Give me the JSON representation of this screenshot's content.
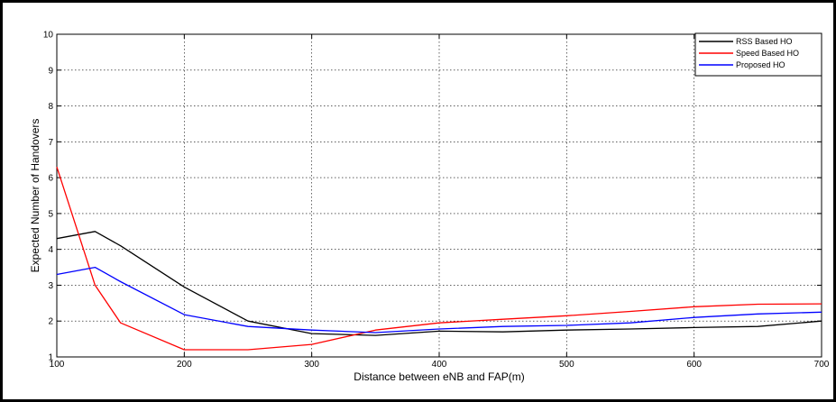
{
  "chart_data": {
    "type": "line",
    "xlabel": "Distance between eNB and FAP(m)",
    "ylabel": "Expected Number of Handovers",
    "xlim": [
      100,
      700
    ],
    "ylim": [
      1,
      10
    ],
    "xticks": [
      "100",
      "200",
      "300",
      "400",
      "500",
      "600",
      "700"
    ],
    "yticks": [
      "1",
      "2",
      "3",
      "4",
      "5",
      "6",
      "7",
      "8",
      "9",
      "10"
    ],
    "grid": true,
    "legend_position": "top-right",
    "series": [
      {
        "name": "RSS Based HO",
        "color": "#000000",
        "x": [
          100,
          130,
          150,
          200,
          250,
          300,
          350,
          400,
          450,
          500,
          550,
          600,
          650,
          700
        ],
        "y": [
          4.3,
          4.5,
          4.1,
          2.95,
          2.0,
          1.65,
          1.6,
          1.72,
          1.7,
          1.75,
          1.78,
          1.82,
          1.85,
          2.0
        ]
      },
      {
        "name": "Speed Based HO",
        "color": "#ff0000",
        "x": [
          100,
          130,
          150,
          200,
          250,
          300,
          350,
          400,
          450,
          500,
          550,
          600,
          650,
          700
        ],
        "y": [
          6.3,
          3.0,
          1.95,
          1.2,
          1.2,
          1.35,
          1.75,
          1.95,
          2.05,
          2.15,
          2.27,
          2.4,
          2.47,
          2.48
        ]
      },
      {
        "name": "Proposed HO",
        "color": "#0000ff",
        "x": [
          100,
          130,
          150,
          200,
          250,
          300,
          350,
          400,
          450,
          500,
          550,
          600,
          650,
          700
        ],
        "y": [
          3.3,
          3.5,
          3.1,
          2.18,
          1.85,
          1.75,
          1.68,
          1.78,
          1.85,
          1.88,
          1.95,
          2.1,
          2.2,
          2.25
        ]
      }
    ]
  }
}
